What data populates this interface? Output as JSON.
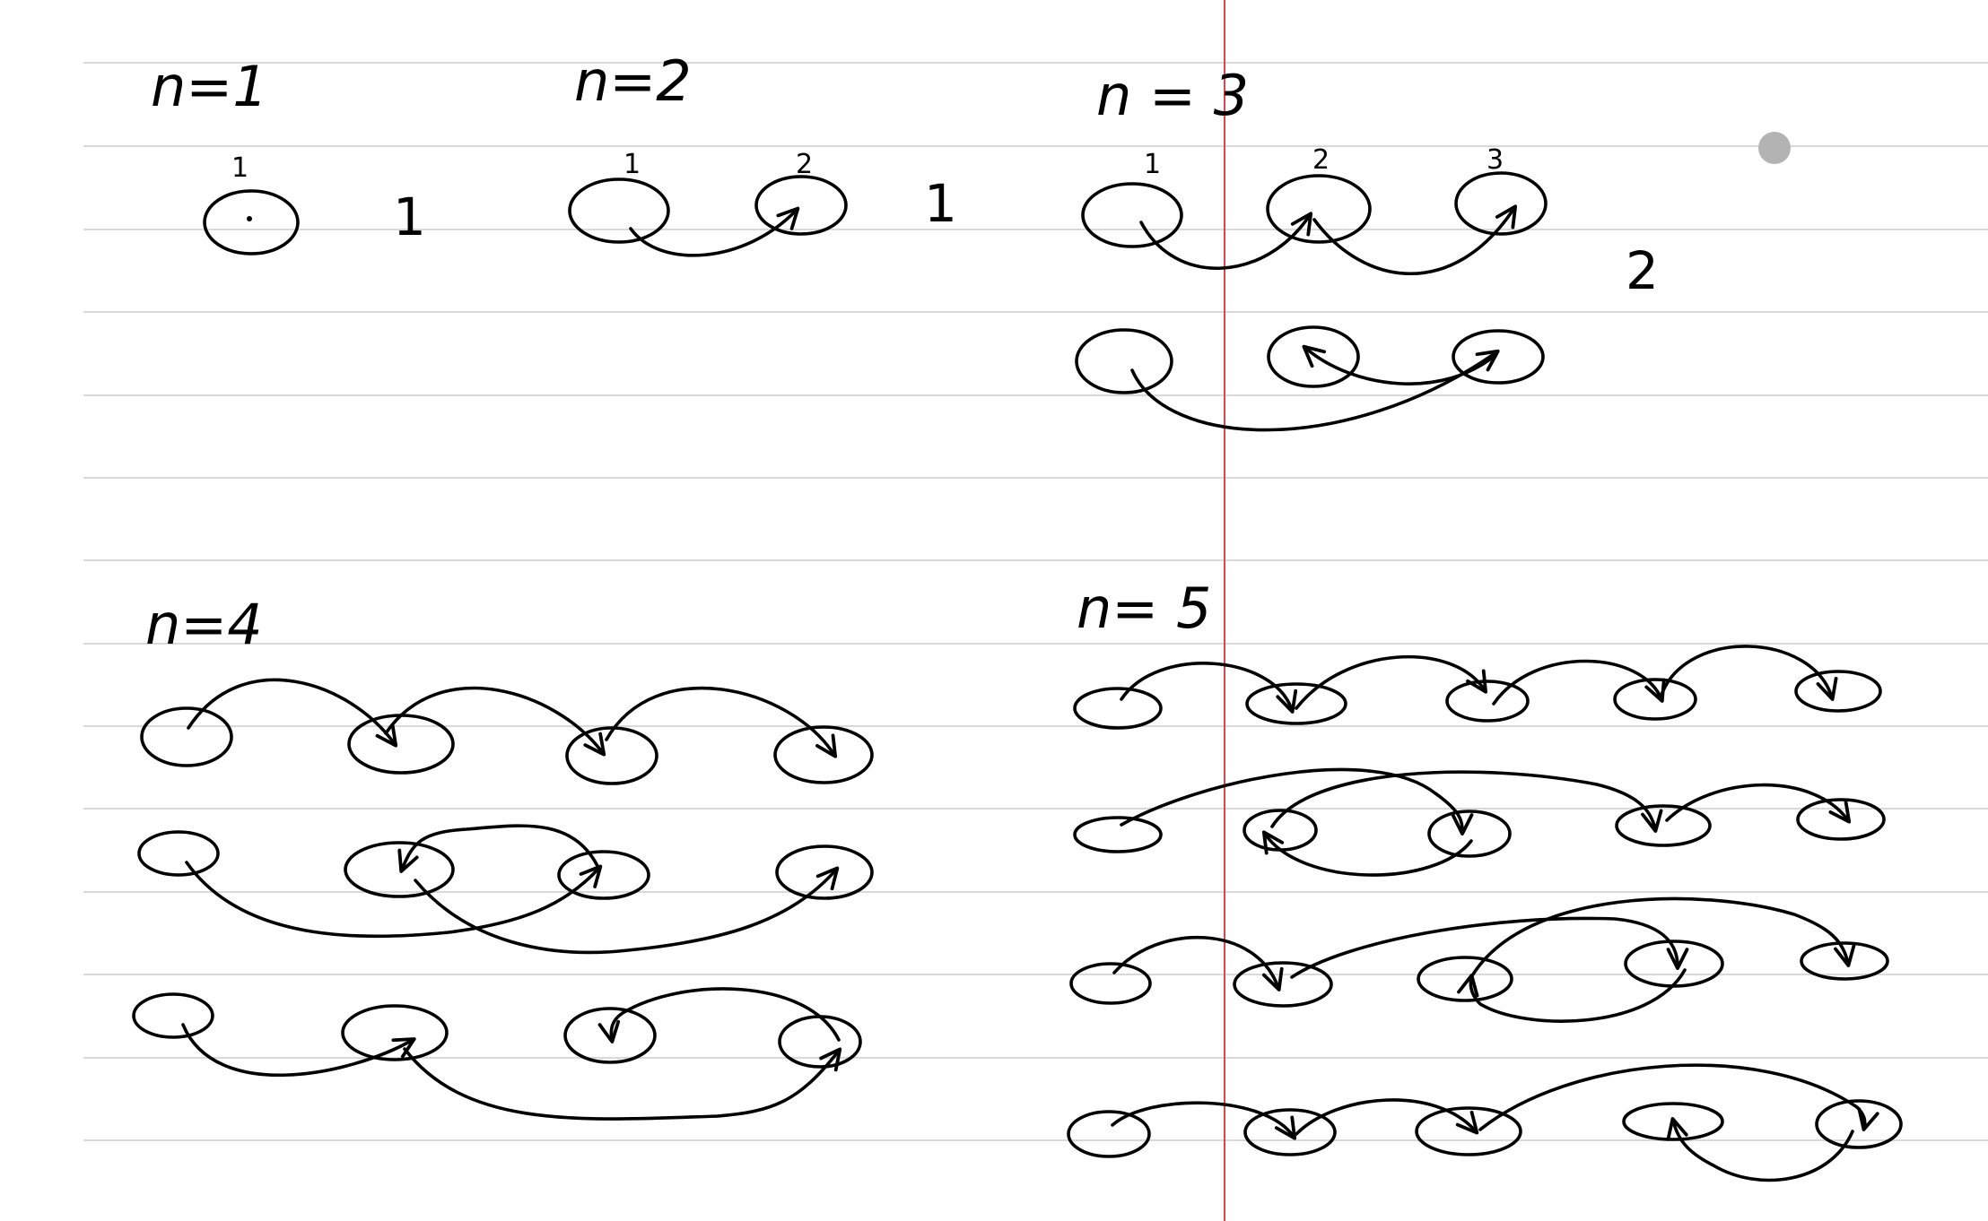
{
  "cases": [
    {
      "name": "n1",
      "heading": "n=1",
      "node_labels": [
        "1"
      ],
      "count": "1"
    },
    {
      "name": "n2",
      "heading": "n=2",
      "node_labels": [
        "1",
        "2"
      ],
      "count": "1"
    },
    {
      "name": "n3",
      "heading": "n = 3",
      "node_labels": [
        "1",
        "2",
        "3"
      ],
      "count": "2"
    },
    {
      "name": "n4",
      "heading": "n=4"
    },
    {
      "name": "n5",
      "heading": "n= 5"
    }
  ],
  "pointer_icon": "gray-dot-cursor",
  "colors": {
    "rule": "#d9d9d9",
    "margin": "#e0444e",
    "ink": "#000000",
    "pointer": "#b3b3b3"
  }
}
